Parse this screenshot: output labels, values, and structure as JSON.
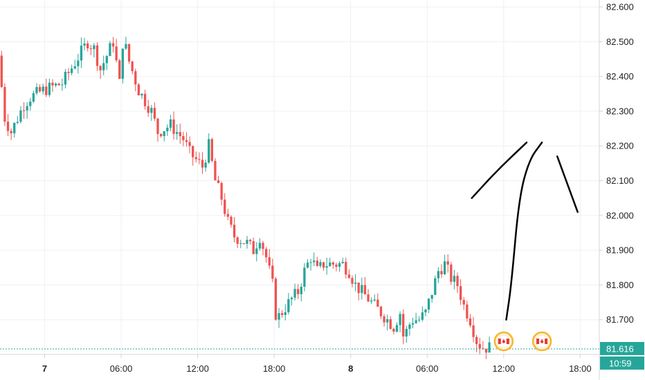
{
  "chart_data": {
    "type": "candlestick",
    "title": "",
    "xlabel": "",
    "ylabel": "",
    "ylim": [
      81.6,
      82.62
    ],
    "y_ticks": [
      "82.600",
      "82.500",
      "82.400",
      "82.300",
      "82.200",
      "82.100",
      "82.000",
      "81.900",
      "81.800",
      "81.700"
    ],
    "x_ticks": [
      {
        "label": "7",
        "hour": 24,
        "bold": true
      },
      {
        "label": "06:00",
        "hour": 30,
        "bold": false
      },
      {
        "label": "12:00",
        "hour": 36,
        "bold": false
      },
      {
        "label": "18:00",
        "hour": 42,
        "bold": false
      },
      {
        "label": "8",
        "hour": 48,
        "bold": true
      },
      {
        "label": "06:00",
        "hour": 54,
        "bold": false
      },
      {
        "label": "12:00",
        "hour": 60,
        "bold": false
      },
      {
        "label": "18:00",
        "hour": 66,
        "bold": false
      }
    ],
    "xlim_hours": [
      20.5,
      67.5
    ],
    "bar_minutes": 15,
    "start_hour": 20.5,
    "up_color": "#26a69a",
    "down_color": "#ef5350",
    "anchor_prices": [
      [
        20.5,
        82.46
      ],
      [
        21.0,
        82.28
      ],
      [
        21.5,
        82.24
      ],
      [
        22.5,
        82.32
      ],
      [
        23.0,
        82.34
      ],
      [
        24.0,
        82.36
      ],
      [
        25.5,
        82.38
      ],
      [
        26.5,
        82.44
      ],
      [
        27.0,
        82.47
      ],
      [
        27.5,
        82.5
      ],
      [
        28.0,
        82.48
      ],
      [
        28.5,
        82.42
      ],
      [
        29.0,
        82.46
      ],
      [
        29.5,
        82.5
      ],
      [
        30.0,
        82.38
      ],
      [
        30.3,
        82.52
      ],
      [
        30.6,
        82.46
      ],
      [
        31.5,
        82.36
      ],
      [
        32.5,
        82.3
      ],
      [
        33.0,
        82.24
      ],
      [
        34.0,
        82.26
      ],
      [
        35.0,
        82.22
      ],
      [
        35.5,
        82.18
      ],
      [
        36.5,
        82.14
      ],
      [
        37.0,
        82.2
      ],
      [
        37.5,
        82.1
      ],
      [
        38.0,
        82.05
      ],
      [
        38.5,
        81.98
      ],
      [
        39.0,
        81.94
      ],
      [
        40.0,
        81.92
      ],
      [
        40.5,
        81.9
      ],
      [
        41.0,
        81.94
      ],
      [
        41.5,
        81.88
      ],
      [
        42.0,
        81.8
      ],
      [
        42.3,
        81.7
      ],
      [
        42.7,
        81.72
      ],
      [
        43.5,
        81.76
      ],
      [
        44.0,
        81.78
      ],
      [
        44.5,
        81.84
      ],
      [
        45.0,
        81.88
      ],
      [
        45.5,
        81.84
      ],
      [
        46.0,
        81.86
      ],
      [
        47.0,
        81.86
      ],
      [
        47.5,
        81.86
      ],
      [
        48.0,
        81.84
      ],
      [
        48.5,
        81.8
      ],
      [
        49.0,
        81.78
      ],
      [
        49.5,
        81.76
      ],
      [
        50.0,
        81.74
      ],
      [
        50.5,
        81.72
      ],
      [
        51.0,
        81.7
      ],
      [
        51.5,
        81.68
      ],
      [
        52.0,
        81.72
      ],
      [
        52.3,
        81.64
      ],
      [
        52.6,
        81.68
      ],
      [
        53.0,
        81.7
      ],
      [
        53.5,
        81.7
      ],
      [
        54.0,
        81.72
      ],
      [
        54.5,
        81.78
      ],
      [
        55.0,
        81.84
      ],
      [
        55.5,
        81.86
      ],
      [
        56.0,
        81.82
      ],
      [
        56.5,
        81.8
      ],
      [
        57.0,
        81.74
      ],
      [
        57.5,
        81.7
      ],
      [
        58.0,
        81.64
      ],
      [
        58.4,
        81.62
      ],
      [
        58.9,
        81.62
      ]
    ],
    "last_price": "81.616",
    "countdown": "10:59",
    "events": [
      {
        "name": "cad-event-1",
        "hour": 60.0
      },
      {
        "name": "cad-event-2",
        "hour": 63.0
      }
    ],
    "drawings": [
      {
        "name": "drawing-line-1",
        "points": [
          [
            57.5,
            82.05
          ],
          [
            59.5,
            82.13
          ],
          [
            61.8,
            82.21
          ]
        ]
      },
      {
        "name": "drawing-line-2",
        "points": [
          [
            60.2,
            81.7
          ],
          [
            60.6,
            81.8
          ],
          [
            61.2,
            82.05
          ],
          [
            62.0,
            82.16
          ],
          [
            63.0,
            82.21
          ]
        ]
      },
      {
        "name": "drawing-line-3",
        "points": [
          [
            64.2,
            82.17
          ],
          [
            65.8,
            82.01
          ]
        ]
      }
    ]
  }
}
